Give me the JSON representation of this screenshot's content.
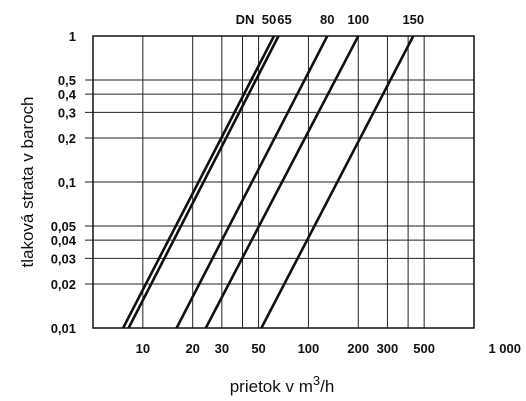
{
  "chart_data": {
    "type": "line",
    "title": "",
    "xlabel": "prietok v m",
    "xlabel_sup": "3",
    "xlabel_suffix": "/h",
    "ylabel": "tlaková strata v baroch",
    "xscale": "log",
    "yscale": "log",
    "xlim": [
      5,
      1000
    ],
    "ylim": [
      0.01,
      1
    ],
    "grid": true,
    "x_ticks": [
      {
        "value": 10,
        "label": "10"
      },
      {
        "value": 20,
        "label": "20"
      },
      {
        "value": 30,
        "label": "30"
      },
      {
        "value": 50,
        "label": "50"
      },
      {
        "value": 100,
        "label": "100"
      },
      {
        "value": 200,
        "label": "200"
      },
      {
        "value": 300,
        "label": "300"
      },
      {
        "value": 500,
        "label": "500"
      },
      {
        "value": 1000,
        "label": "1 000"
      }
    ],
    "x_grid": [
      10,
      20,
      30,
      40,
      50,
      100,
      200,
      300,
      400,
      500
    ],
    "y_ticks": [
      {
        "value": 0.01,
        "label": "0,01"
      },
      {
        "value": 0.02,
        "label": "0,02"
      },
      {
        "value": 0.03,
        "label": "0,03"
      },
      {
        "value": 0.04,
        "label": "0,04"
      },
      {
        "value": 0.05,
        "label": "0,05"
      },
      {
        "value": 0.1,
        "label": "0,1"
      },
      {
        "value": 0.2,
        "label": "0,2"
      },
      {
        "value": 0.3,
        "label": "0,3"
      },
      {
        "value": 0.4,
        "label": "0,4"
      },
      {
        "value": 0.5,
        "label": "0,5"
      },
      {
        "value": 1,
        "label": "1"
      }
    ],
    "dn_prefix": "DN",
    "series": [
      {
        "name": "50",
        "points": [
          [
            7.6,
            0.01
          ],
          [
            62,
            1
          ]
        ]
      },
      {
        "name": "65",
        "points": [
          [
            8.2,
            0.01
          ],
          [
            66,
            1
          ]
        ]
      },
      {
        "name": "80",
        "points": [
          [
            16,
            0.01
          ],
          [
            130,
            1
          ]
        ]
      },
      {
        "name": "100",
        "points": [
          [
            24,
            0.01
          ],
          [
            200,
            1
          ]
        ]
      },
      {
        "name": "150",
        "points": [
          [
            52,
            0.01
          ],
          [
            430,
            1
          ]
        ]
      }
    ]
  }
}
